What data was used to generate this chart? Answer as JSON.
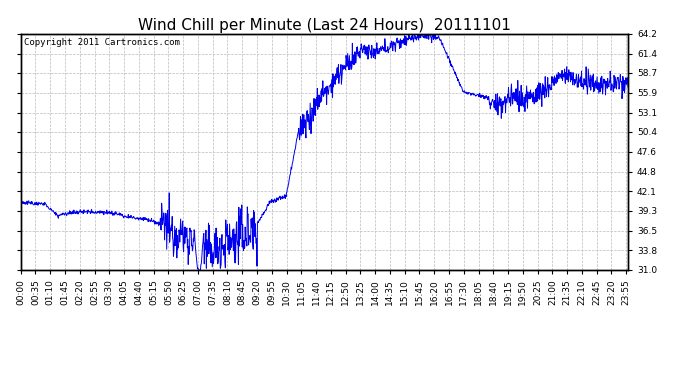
{
  "title": "Wind Chill per Minute (Last 24 Hours)  20111101",
  "copyright_text": "Copyright 2011 Cartronics.com",
  "line_color": "#0000EE",
  "background_color": "#ffffff",
  "grid_color": "#bbbbbb",
  "yticks": [
    31.0,
    33.8,
    36.5,
    39.3,
    42.1,
    44.8,
    47.6,
    50.4,
    53.1,
    55.9,
    58.7,
    61.4,
    64.2
  ],
  "ymin": 31.0,
  "ymax": 64.2,
  "xtick_labels": [
    "00:00",
    "00:35",
    "01:10",
    "01:45",
    "02:20",
    "02:55",
    "03:30",
    "04:05",
    "04:40",
    "05:15",
    "05:50",
    "06:25",
    "07:00",
    "07:35",
    "08:10",
    "08:45",
    "09:20",
    "09:55",
    "10:30",
    "11:05",
    "11:40",
    "12:15",
    "12:50",
    "13:25",
    "14:00",
    "14:35",
    "15:10",
    "15:45",
    "16:20",
    "16:55",
    "17:30",
    "18:05",
    "18:40",
    "19:15",
    "19:50",
    "20:25",
    "21:00",
    "21:35",
    "22:10",
    "22:45",
    "23:20",
    "23:55"
  ],
  "title_fontsize": 11,
  "copyright_fontsize": 6.5,
  "tick_fontsize": 6.5,
  "line_width": 0.7
}
